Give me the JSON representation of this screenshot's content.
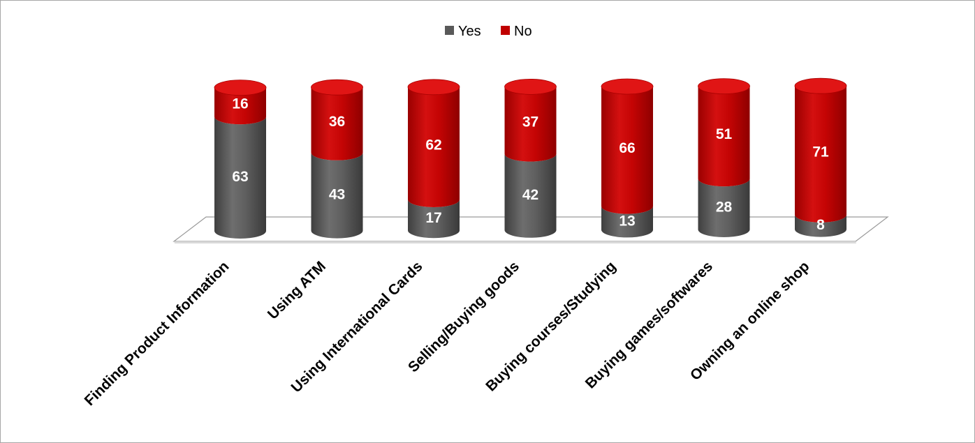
{
  "chart_data": {
    "type": "bar",
    "stacked": true,
    "style": "3d-cylinder",
    "title": "",
    "xlabel": "",
    "ylabel": "",
    "legend_position": "top",
    "grid": false,
    "categories": [
      "Finding Product Information",
      "Using ATM",
      "Using International Cards",
      "Selling/Buying goods",
      "Buying courses/Studying",
      "Buying games/softwares",
      "Owning an online shop"
    ],
    "series": [
      {
        "name": "Yes",
        "color": "#595959",
        "values": [
          63,
          43,
          17,
          42,
          13,
          28,
          8
        ]
      },
      {
        "name": "No",
        "color": "#c00000",
        "values": [
          16,
          36,
          62,
          37,
          66,
          51,
          71
        ]
      }
    ]
  }
}
